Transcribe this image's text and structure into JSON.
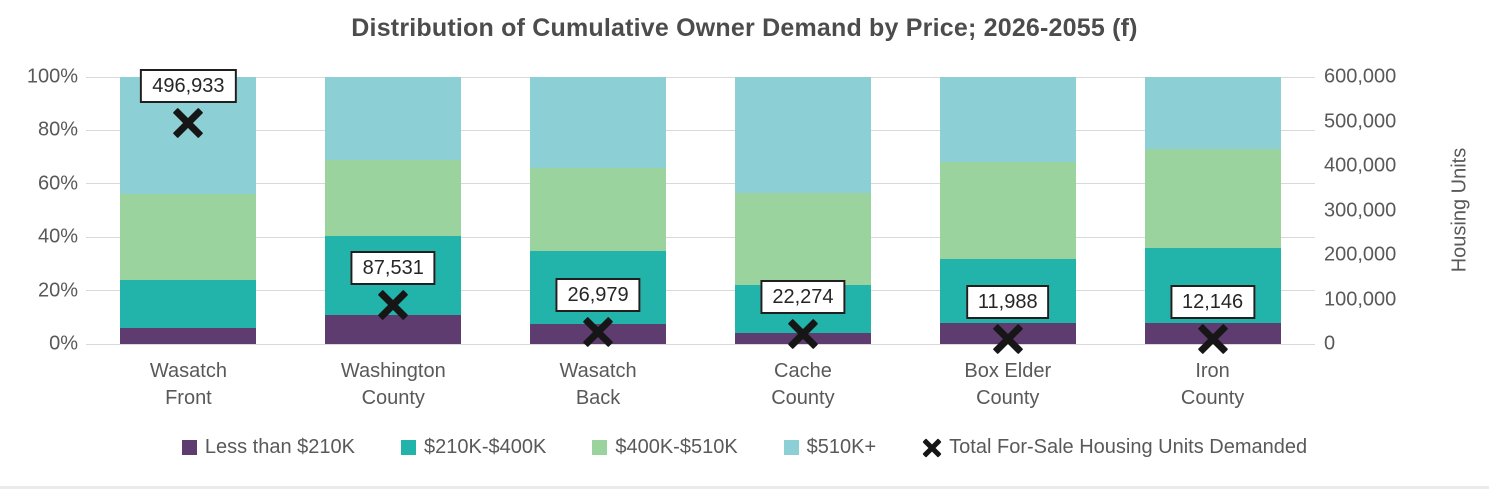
{
  "title": "Distribution of Cumulative Owner Demand by Price; 2026-2055 (f)",
  "chart_data": {
    "type": "bar",
    "stacked": true,
    "percent_stacked": true,
    "grid": true,
    "title": "Distribution of Cumulative Owner Demand by Price; 2026-2055 (f)",
    "categories": [
      "Wasatch Front",
      "Washington County",
      "Wasatch Back",
      "Cache County",
      "Box Elder County",
      "Iron County"
    ],
    "category_lines": [
      [
        "Wasatch",
        "Front"
      ],
      [
        "Washington",
        "County"
      ],
      [
        "Wasatch",
        "Back"
      ],
      [
        "Cache",
        "County"
      ],
      [
        "Box Elder",
        "County"
      ],
      [
        "Iron",
        "County"
      ]
    ],
    "series": [
      {
        "name": "Less than $210K",
        "color": "#5e3c70",
        "values": [
          6,
          11,
          7.5,
          4,
          8,
          8
        ]
      },
      {
        "name": "$210K-$400K",
        "color": "#22b3aa",
        "values": [
          18,
          29.5,
          27.5,
          18,
          24,
          28
        ]
      },
      {
        "name": "$400K-$510K",
        "color": "#9bd39e",
        "values": [
          32,
          28.5,
          31,
          34.5,
          36,
          37
        ]
      },
      {
        "name": "$510K+",
        "color": "#8ccfd4",
        "values": [
          44,
          31,
          34,
          43.5,
          32,
          27
        ]
      }
    ],
    "marker_series": {
      "name": "Total For-Sale Housing Units Demanded",
      "color": "#161616",
      "axis": "right",
      "values": [
        496933,
        87531,
        26979,
        22274,
        11988,
        12146
      ],
      "labels": [
        "496,933",
        "87,531",
        "26,979",
        "22,274",
        "11,988",
        "12,146"
      ]
    },
    "left_axis": {
      "min": 0,
      "max": 100,
      "tick_labels": [
        "100%",
        "80%",
        "60%",
        "40%",
        "20%",
        "0%"
      ]
    },
    "right_axis": {
      "min": 0,
      "max": 600000,
      "tick_labels": [
        "600,000",
        "500,000",
        "400,000",
        "300,000",
        "200,000",
        "100,000",
        "0"
      ],
      "title": "Housing Units"
    },
    "legend_position": "bottom",
    "colors": {
      "grid": "#d9d9d9",
      "axis_text": "#595959",
      "title_text": "#4c4c4c",
      "marker": "#161616"
    }
  }
}
